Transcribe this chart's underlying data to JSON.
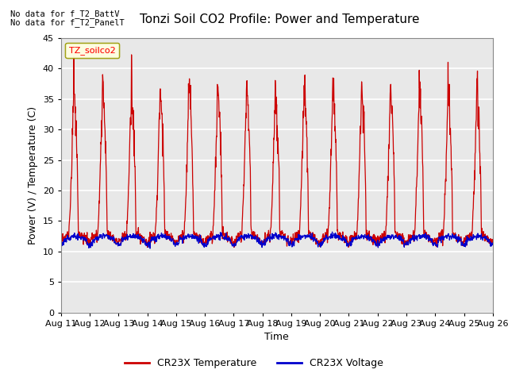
{
  "title": "Tonzi Soil CO2 Profile: Power and Temperature",
  "ylabel": "Power (V) / Temperature (C)",
  "xlabel": "Time",
  "ylim": [
    0,
    45
  ],
  "yticks": [
    0,
    5,
    10,
    15,
    20,
    25,
    30,
    35,
    40,
    45
  ],
  "xtick_labels": [
    "Aug 11",
    "Aug 12",
    "Aug 13",
    "Aug 14",
    "Aug 15",
    "Aug 16",
    "Aug 17",
    "Aug 18",
    "Aug 19",
    "Aug 20",
    "Aug 21",
    "Aug 22",
    "Aug 23",
    "Aug 24",
    "Aug 25",
    "Aug 26"
  ],
  "no_data_texts": [
    "No data for f_T2_BattV",
    "No data for f_T2_PanelT"
  ],
  "inner_legend_label": "TZ_soilco2",
  "legend_entries": [
    "CR23X Temperature",
    "CR23X Voltage"
  ],
  "legend_colors": [
    "#cc0000",
    "#0000cc"
  ],
  "fig_facecolor": "#ffffff",
  "plot_bg_color": "#e8e8e8",
  "title_fontsize": 11,
  "axis_fontsize": 9,
  "tick_fontsize": 8
}
